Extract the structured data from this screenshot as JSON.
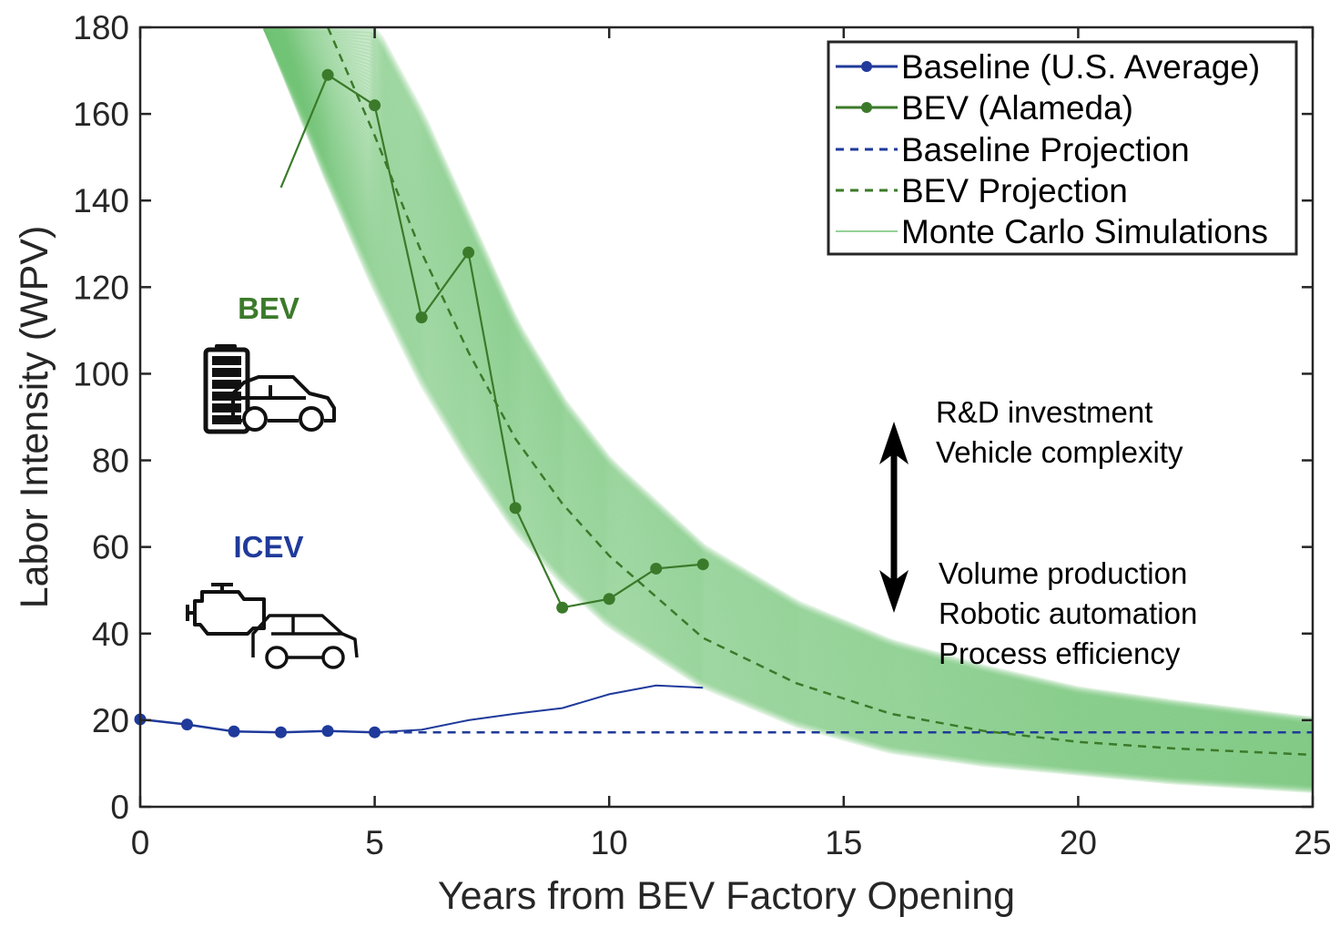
{
  "colors": {
    "baseline": "#1f3a9a",
    "bev": "#3b7a2a",
    "monte_carlo": "#74c476",
    "axis": "#262626"
  },
  "labels": {
    "bev_category": "BEV",
    "icev_category": "ICEV",
    "up_drivers": [
      "R&D investment",
      "Vehicle complexity"
    ],
    "down_drivers": [
      "Volume production",
      "Robotic automation",
      "Process efficiency"
    ]
  },
  "icons": [
    "battery-icon",
    "bev-car-icon",
    "engine-icon",
    "icev-car-icon",
    "double-arrow-icon"
  ],
  "chart_data": {
    "type": "line",
    "xlabel": "Years from BEV Factory Opening",
    "ylabel": "Labor Intensity (WPV)",
    "xlim": [
      0,
      25
    ],
    "ylim": [
      0,
      180
    ],
    "xticks": [
      0,
      5,
      10,
      15,
      20,
      25
    ],
    "yticks": [
      0,
      20,
      40,
      60,
      80,
      100,
      120,
      140,
      160,
      180
    ],
    "grid": false,
    "legend_position": "top-right",
    "series": [
      {
        "name": "Baseline (U.S. Average)",
        "style": "solid-marker",
        "x": [
          0,
          1,
          2,
          3,
          4,
          5
        ],
        "y": [
          20.2,
          19.0,
          17.4,
          17.2,
          17.5,
          17.2
        ]
      },
      {
        "name": "BEV (Alameda)",
        "style": "solid-marker",
        "x": [
          3,
          4,
          5,
          6,
          7,
          8,
          9,
          10,
          11,
          12
        ],
        "y": [
          143,
          169,
          162,
          113,
          128,
          69,
          46,
          48,
          55,
          56
        ],
        "marker_start_index": 1
      },
      {
        "name": "Baseline Projection",
        "style": "dashed",
        "x": [
          5,
          25
        ],
        "y": [
          17.2,
          17.2
        ]
      },
      {
        "name": "BEV Projection",
        "style": "dashed",
        "x": [
          4,
          5,
          6,
          7,
          8,
          9,
          10,
          12,
          14,
          16,
          18,
          20,
          22,
          25
        ],
        "y": [
          180,
          155,
          128,
          105,
          85,
          70,
          58,
          39,
          28.5,
          21.5,
          17.5,
          15,
          13.5,
          12
        ]
      },
      {
        "name": "Monte Carlo Simulations",
        "style": "thin-band",
        "x": [
          2.7,
          4,
          5,
          6,
          7,
          8,
          9,
          10,
          12,
          14,
          16,
          18,
          20,
          22,
          25
        ],
        "y_low": [
          180,
          145,
          120,
          98,
          80,
          64,
          52,
          42,
          28,
          19,
          13,
          10,
          8,
          6,
          4
        ],
        "y_high": [
          180,
          180,
          180,
          160,
          136,
          112,
          94,
          80,
          60,
          47,
          38,
          32,
          27,
          24,
          20
        ]
      },
      {
        "name": "",
        "style": "solid-thin",
        "x": [
          5,
          6,
          7,
          8,
          9,
          10,
          11,
          12
        ],
        "y": [
          17.2,
          17.8,
          20,
          21.5,
          22.8,
          26,
          28,
          27.5
        ]
      }
    ]
  }
}
